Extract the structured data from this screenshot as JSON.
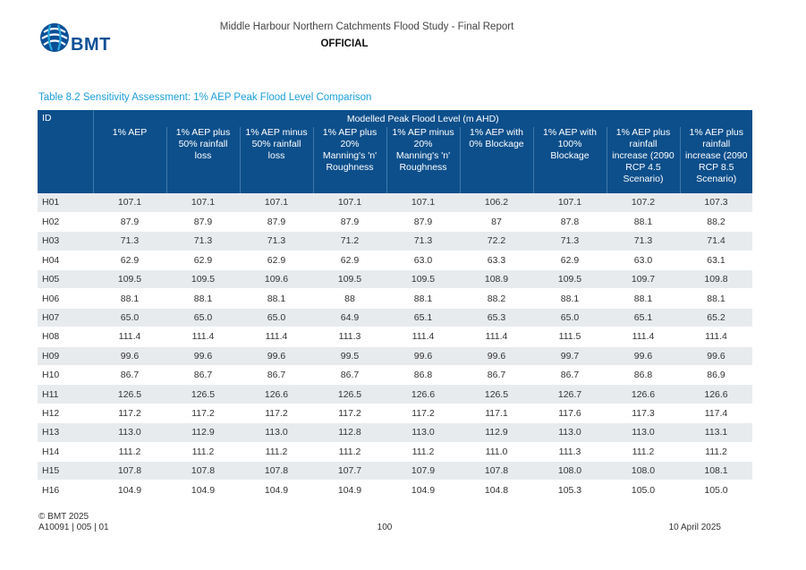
{
  "header": {
    "logo_text": "BMT",
    "report_title": "Middle Harbour Northern Catchments Flood Study - Final Report",
    "classification": "OFFICIAL"
  },
  "table": {
    "caption": "Table 8.2 Sensitivity Assessment: 1% AEP Peak Flood Level Comparison",
    "id_header": "ID",
    "group_header": "Modelled Peak Flood Level (m AHD)",
    "columns": [
      "1% AEP",
      "1% AEP plus\n50% rainfall\nloss",
      "1% AEP minus\n50% rainfall\nloss",
      "1% AEP plus\n20%\nManning's 'n'\nRoughness",
      "1% AEP minus\n20%\nManning's 'n'\nRoughness",
      "1% AEP with\n0% Blockage",
      "1% AEP with\n100%\nBlockage",
      "1% AEP plus\nrainfall\nincrease (2090\nRCP 4.5\nScenario)",
      "1% AEP plus\nrainfall\nincrease (2090\nRCP 8.5\nScenario)"
    ],
    "rows": [
      [
        "H01",
        "107.1",
        "107.1",
        "107.1",
        "107.1",
        "107.1",
        "106.2",
        "107.1",
        "107.2",
        "107.3"
      ],
      [
        "H02",
        "87.9",
        "87.9",
        "87.9",
        "87.9",
        "87.9",
        "87",
        "87.8",
        "88.1",
        "88.2"
      ],
      [
        "H03",
        "71.3",
        "71.3",
        "71.3",
        "71.2",
        "71.3",
        "72.2",
        "71.3",
        "71.3",
        "71.4"
      ],
      [
        "H04",
        "62.9",
        "62.9",
        "62.9",
        "62.9",
        "63.0",
        "63.3",
        "62.9",
        "63.0",
        "63.1"
      ],
      [
        "H05",
        "109.5",
        "109.5",
        "109.6",
        "109.5",
        "109.5",
        "108.9",
        "109.5",
        "109.7",
        "109.8"
      ],
      [
        "H06",
        "88.1",
        "88.1",
        "88.1",
        "88",
        "88.1",
        "88.2",
        "88.1",
        "88.1",
        "88.1"
      ],
      [
        "H07",
        "65.0",
        "65.0",
        "65.0",
        "64.9",
        "65.1",
        "65.3",
        "65.0",
        "65.1",
        "65.2"
      ],
      [
        "H08",
        "111.4",
        "111.4",
        "111.4",
        "111.3",
        "111.4",
        "111.4",
        "111.5",
        "111.4",
        "111.4"
      ],
      [
        "H09",
        "99.6",
        "99.6",
        "99.6",
        "99.5",
        "99.6",
        "99.6",
        "99.7",
        "99.6",
        "99.6"
      ],
      [
        "H10",
        "86.7",
        "86.7",
        "86.7",
        "86.7",
        "86.8",
        "86.7",
        "86.7",
        "86.8",
        "86.9"
      ],
      [
        "H11",
        "126.5",
        "126.5",
        "126.6",
        "126.5",
        "126.6",
        "126.5",
        "126.7",
        "126.6",
        "126.6"
      ],
      [
        "H12",
        "117.2",
        "117.2",
        "117.2",
        "117.2",
        "117.2",
        "117.1",
        "117.6",
        "117.3",
        "117.4"
      ],
      [
        "H13",
        "113.0",
        "112.9",
        "113.0",
        "112.8",
        "113.0",
        "112.9",
        "113.0",
        "113.0",
        "113.1"
      ],
      [
        "H14",
        "111.2",
        "111.2",
        "111.2",
        "111.2",
        "111.2",
        "111.0",
        "111.3",
        "111.2",
        "111.2"
      ],
      [
        "H15",
        "107.8",
        "107.8",
        "107.8",
        "107.7",
        "107.9",
        "107.8",
        "108.0",
        "108.0",
        "108.1"
      ],
      [
        "H16",
        "104.9",
        "104.9",
        "104.9",
        "104.9",
        "104.9",
        "104.8",
        "105.3",
        "105.0",
        "105.0"
      ]
    ]
  },
  "footer": {
    "copyright": "© BMT 2025",
    "reference": "A10091 | 005 | 01",
    "page_number": "100",
    "date": "10 April 2025"
  },
  "colors": {
    "header_fill": "#0d4f8b",
    "caption": "#1b9ed8",
    "row_band": "#e8ebee",
    "logo": "#0a4f96"
  }
}
